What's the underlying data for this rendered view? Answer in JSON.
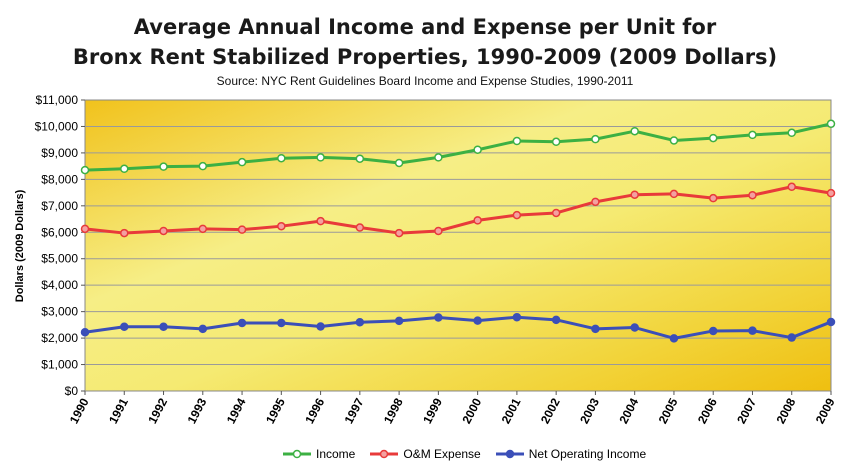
{
  "chart_data": {
    "type": "line",
    "title": "Average Annual Income and Expense per Unit for",
    "title_line2": "Bronx Rent Stabilized Properties, 1990-2009 (2009 Dollars)",
    "subtitle": "Source: NYC Rent Guidelines Board Income and Expense Studies, 1990-2011",
    "ylabel": "Dollars (2009 Dollars)",
    "xlabel": "",
    "x": [
      "1990",
      "1991",
      "1992",
      "1993",
      "1994",
      "1995",
      "1996",
      "1997",
      "1998",
      "1999",
      "2000",
      "2001",
      "2002",
      "2003",
      "2004",
      "2005",
      "2006",
      "2007",
      "2008",
      "2009"
    ],
    "yticks": [
      "$0",
      "$1,000",
      "$2,000",
      "$3,000",
      "$4,000",
      "$5,000",
      "$6,000",
      "$7,000",
      "$8,000",
      "$9,000",
      "$10,000",
      "$11,000"
    ],
    "ylim": [
      0,
      11000
    ],
    "grid": true,
    "legend_position": "bottom",
    "series": [
      {
        "name": "Income",
        "color": "#3cb043",
        "marker_fill": "#ffffff",
        "values": [
          8350,
          8400,
          8480,
          8500,
          8650,
          8800,
          8830,
          8780,
          8620,
          8830,
          9120,
          9450,
          9420,
          9520,
          9820,
          9470,
          9560,
          9680,
          9760,
          10100
        ]
      },
      {
        "name": "O&M Expense",
        "color": "#e83a3a",
        "marker_fill": "#f4a0a0",
        "values": [
          6130,
          5970,
          6050,
          6130,
          6100,
          6230,
          6420,
          6180,
          5970,
          6050,
          6450,
          6650,
          6730,
          7150,
          7420,
          7450,
          7290,
          7400,
          7720,
          7480
        ]
      },
      {
        "name": "Net Operating Income",
        "color": "#3b4fb8",
        "marker_fill": "#3b4fb8",
        "values": [
          2220,
          2430,
          2430,
          2350,
          2570,
          2570,
          2440,
          2600,
          2650,
          2780,
          2660,
          2790,
          2690,
          2350,
          2400,
          1990,
          2270,
          2280,
          2020,
          2610
        ]
      }
    ],
    "colors": {
      "plot_bg_light": "#f4f08a",
      "plot_bg_dark": "#f0c41a",
      "grid": "#9a9a9a"
    }
  }
}
